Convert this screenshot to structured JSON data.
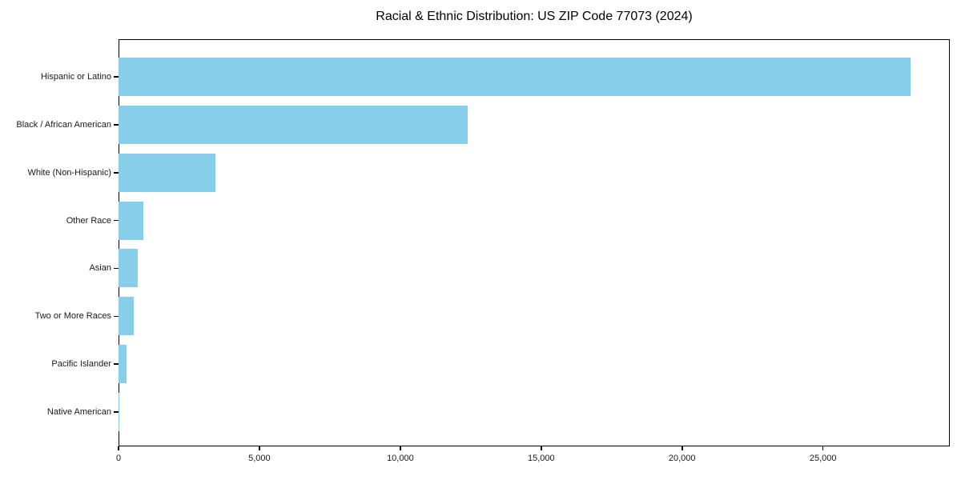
{
  "title": "Racial & Ethnic Distribution: US ZIP Code 77073 (2024)",
  "colors": {
    "bar": "#87CEEB",
    "axis": "#000000",
    "text": "#1a1a1a",
    "background": "#ffffff"
  },
  "chart_data": {
    "type": "bar",
    "orientation": "horizontal",
    "title": "Racial & Ethnic Distribution: US ZIP Code 77073 (2024)",
    "categories": [
      "Hispanic or Latino",
      "Black / African American",
      "White (Non-Hispanic)",
      "Other Race",
      "Asian",
      "Two or More Races",
      "Pacific Islander",
      "Native American"
    ],
    "values": [
      28100,
      12400,
      3440,
      890,
      680,
      550,
      280,
      20
    ],
    "xlabel": "",
    "ylabel": "",
    "xlim": [
      0,
      29500
    ],
    "x_ticks": [
      0,
      5000,
      10000,
      15000,
      20000,
      25000
    ],
    "x_tick_labels": [
      "0",
      "5,000",
      "10,000",
      "15,000",
      "20,000",
      "25,000"
    ],
    "bar_color": "#87CEEB",
    "grid": false,
    "legend": null
  }
}
